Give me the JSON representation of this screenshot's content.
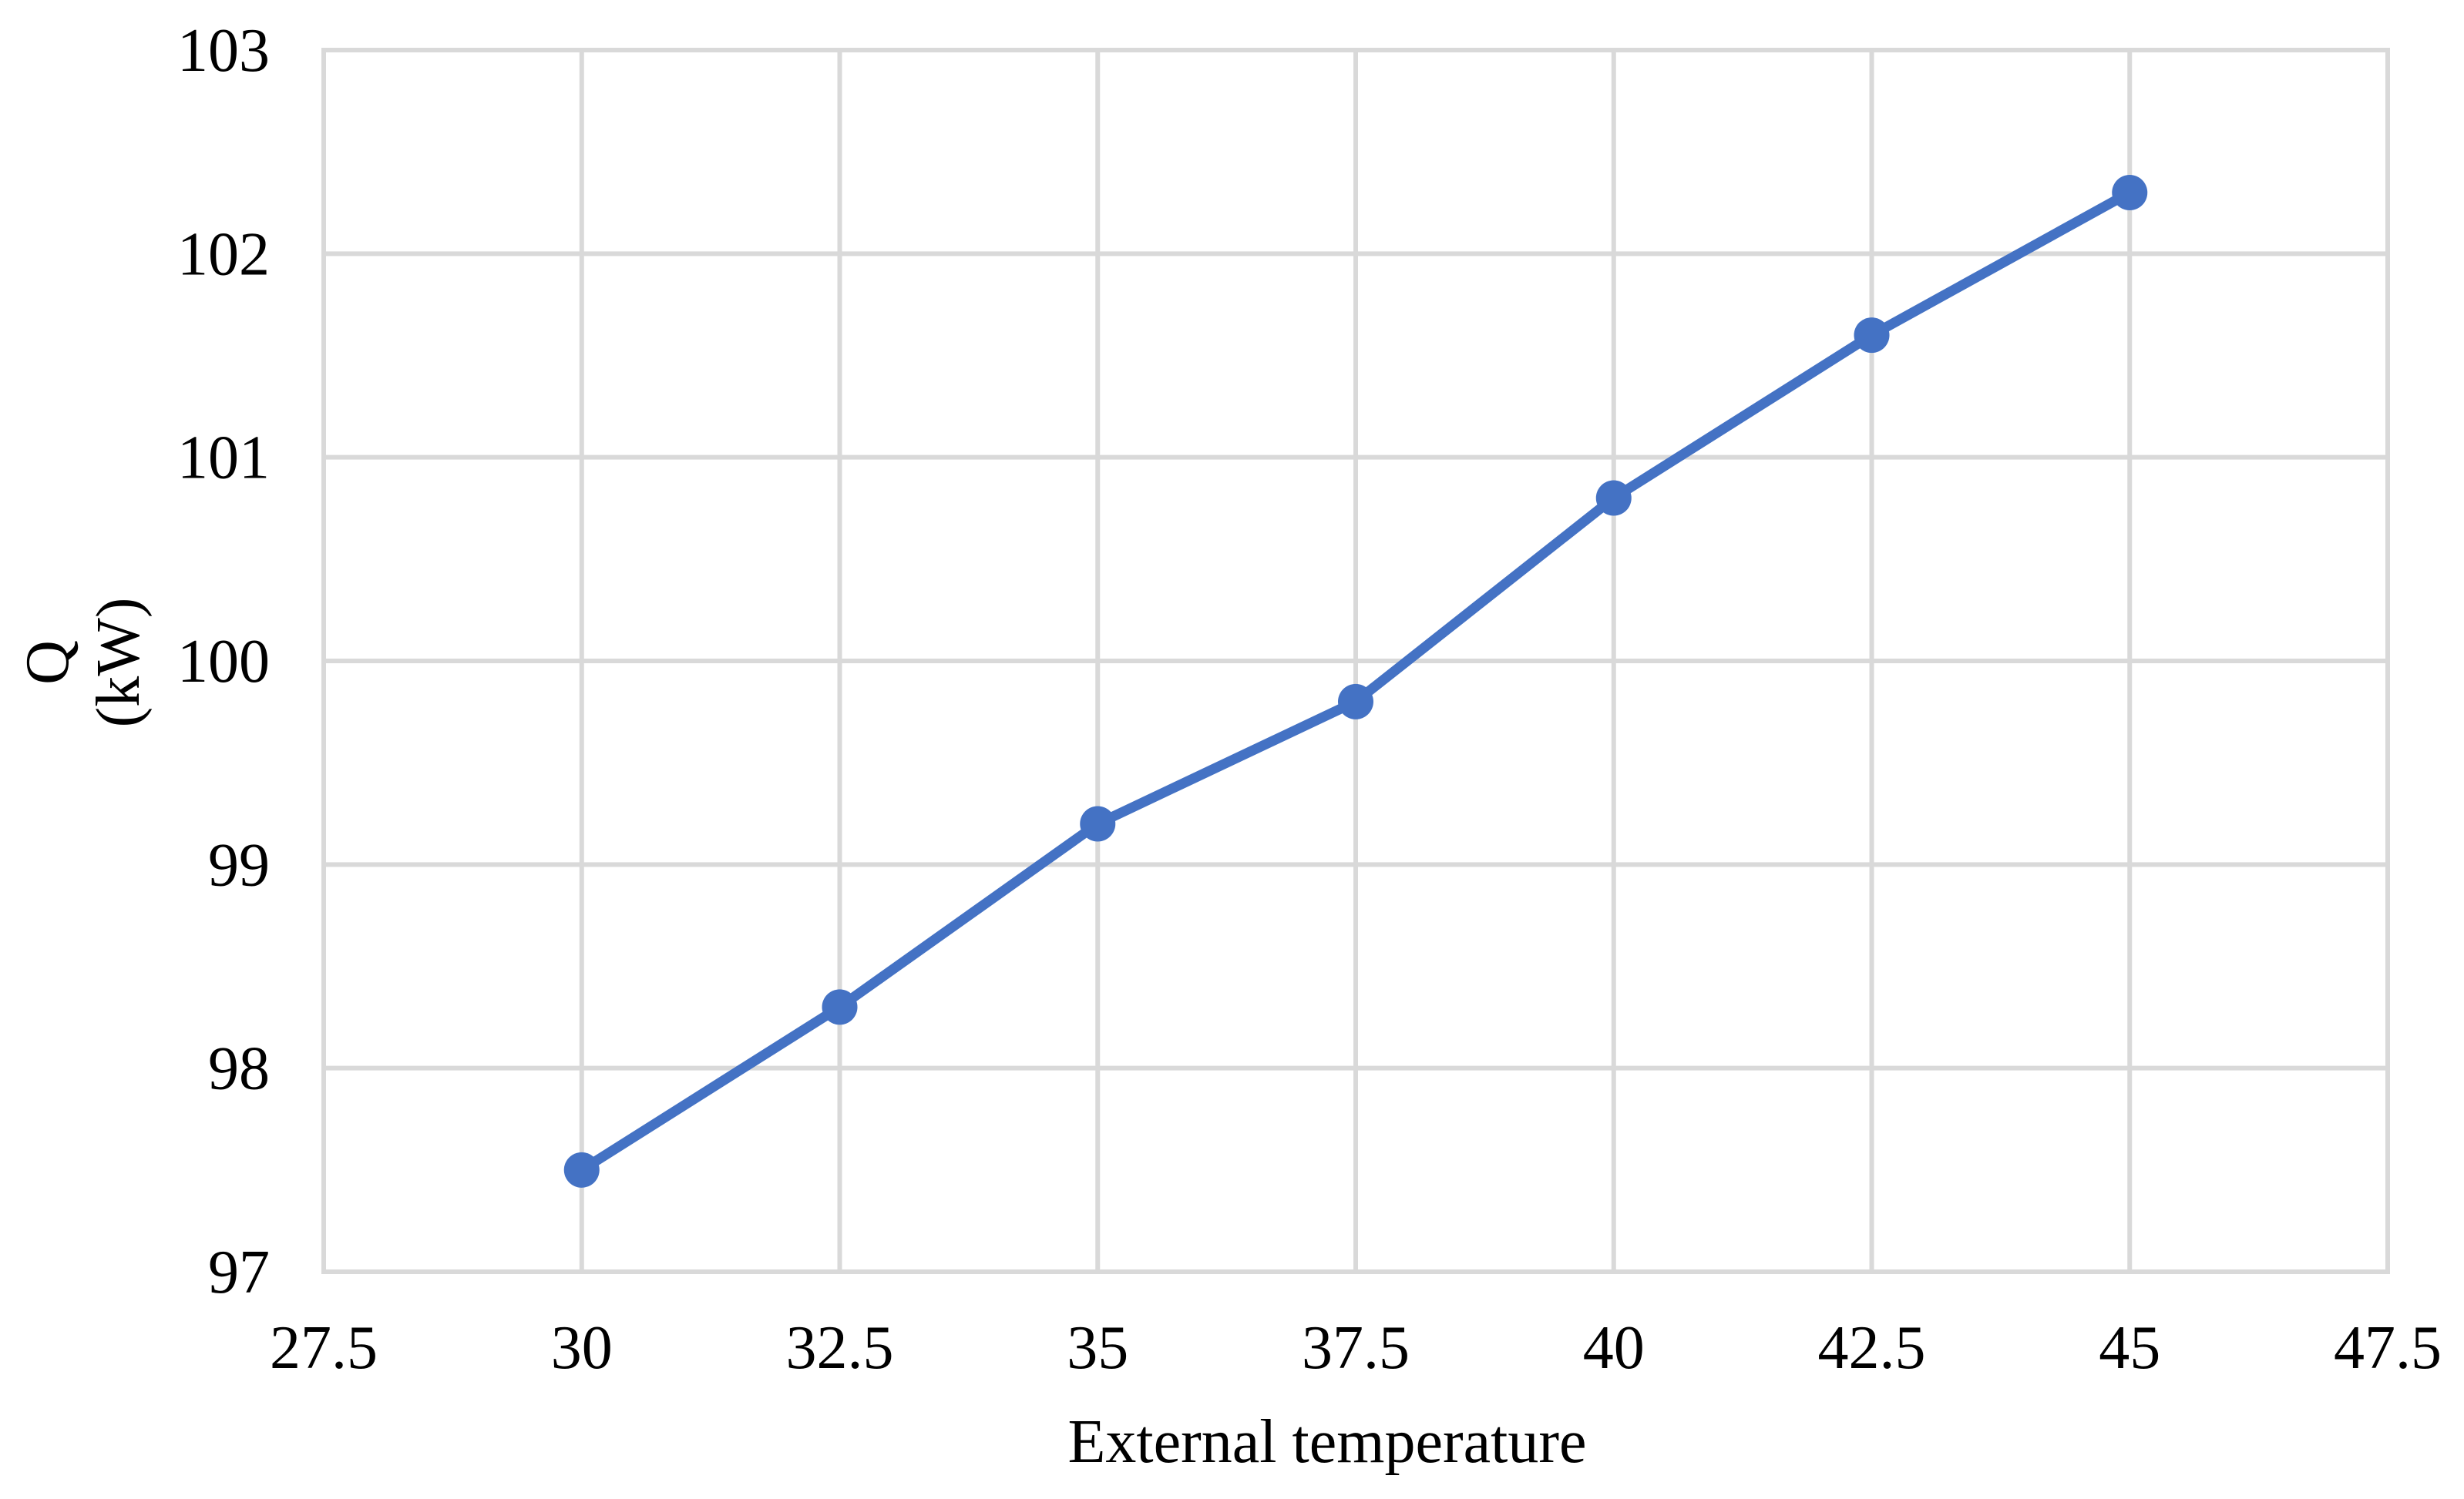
{
  "chart_data": {
    "type": "scatter",
    "x": [
      30,
      32.5,
      35,
      37.5,
      40,
      42.5,
      45
    ],
    "series": [
      {
        "values": [
          97.5,
          98.3,
          99.2,
          99.8,
          100.8,
          101.6,
          102.3
        ]
      }
    ],
    "xlabel": "External temperature",
    "ylabel": [
      "Q",
      "(kW)"
    ],
    "xlim": [
      27.5,
      47.5
    ],
    "ylim": [
      97,
      103
    ],
    "xticks": [
      27.5,
      30,
      32.5,
      35,
      37.5,
      40,
      42.5,
      45,
      47.5
    ],
    "yticks": [
      97,
      98,
      99,
      100,
      101,
      102,
      103
    ],
    "grid": true,
    "markers": true,
    "line_connected": true,
    "series_color": "#4472C4",
    "grid_color": "#D9D9D9"
  }
}
